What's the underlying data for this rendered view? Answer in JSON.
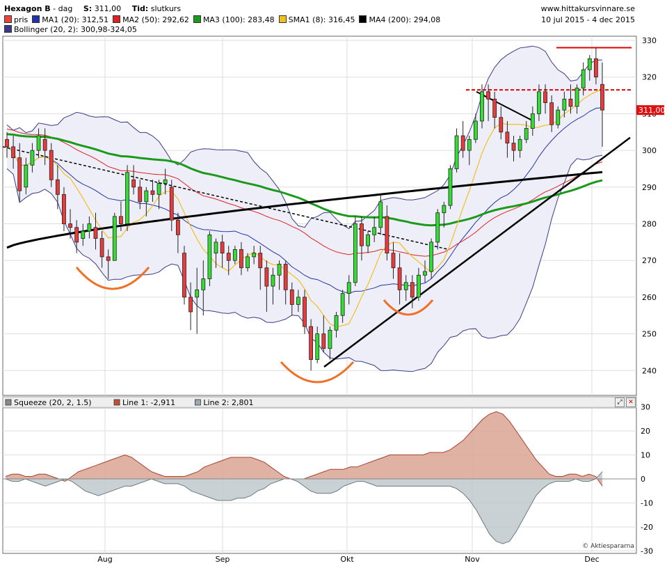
{
  "header": {
    "name": "Hexagon B",
    "interval": "dag",
    "s_label": "S:",
    "s_value": "311,00",
    "tid_label": "Tid:",
    "tid_value": "slutkurs",
    "site": "www.hittakursvinnare.se",
    "date_range": "10 jul 2015 - 4 dec 2015",
    "legend": [
      {
        "label": "pris",
        "color": "#e8453c"
      },
      {
        "label": "MA1 (20): 312,51",
        "color": "#2233aa"
      },
      {
        "label": "MA2 (50): 292,62",
        "color": "#dd2222"
      },
      {
        "label": "MA3 (100): 283,48",
        "color": "#1a9a1a"
      },
      {
        "label": "SMA1 (8): 316,45",
        "color": "#f0c020"
      },
      {
        "label": "MA4 (200): 294,08",
        "color": "#000000"
      },
      {
        "label": "Bollinger (20, 2): 300,98-324,05",
        "color": "#3a3a8a"
      }
    ]
  },
  "chart_data": [
    {
      "type": "candlestick",
      "yticks": [
        "330",
        "320",
        "310",
        "300",
        "290",
        "280",
        "270",
        "260",
        "250",
        "240"
      ],
      "ylim": [
        236,
        333
      ],
      "xlabels": [
        "Aug",
        "Sep",
        "Okt",
        "Nov",
        "Dec"
      ],
      "last_price_label": "311,00",
      "ohlc": [
        [
          303,
          305,
          298,
          301
        ],
        [
          301,
          304,
          295,
          298
        ],
        [
          298,
          302,
          286,
          289
        ],
        [
          290,
          298,
          288,
          296
        ],
        [
          296,
          302,
          294,
          300
        ],
        [
          300,
          306,
          298,
          304
        ],
        [
          303,
          306,
          296,
          300
        ],
        [
          300,
          302,
          290,
          292
        ],
        [
          292,
          296,
          284,
          288
        ],
        [
          288,
          290,
          278,
          280
        ],
        [
          280,
          284,
          276,
          279
        ],
        [
          279,
          281,
          272,
          275
        ],
        [
          276,
          280,
          274,
          278
        ],
        [
          278,
          282,
          276,
          280
        ],
        [
          279,
          283,
          273,
          276
        ],
        [
          276,
          278,
          268,
          271
        ],
        [
          271,
          273,
          265,
          270
        ],
        [
          270,
          283,
          270,
          282
        ],
        [
          282,
          286,
          278,
          280
        ],
        [
          280,
          296,
          278,
          294
        ],
        [
          292,
          296,
          288,
          290
        ],
        [
          290,
          292,
          284,
          286
        ],
        [
          286,
          290,
          282,
          289
        ],
        [
          289,
          292,
          286,
          288
        ],
        [
          288,
          292,
          284,
          291
        ],
        [
          291,
          295,
          288,
          292
        ],
        [
          290,
          292,
          278,
          281
        ],
        [
          281,
          283,
          272,
          277
        ],
        [
          272,
          274,
          258,
          260
        ],
        [
          260,
          264,
          251,
          256
        ],
        [
          260,
          268,
          250,
          262
        ],
        [
          262,
          270,
          255,
          265
        ],
        [
          265,
          278,
          263,
          277
        ],
        [
          272,
          276,
          268,
          275
        ],
        [
          275,
          277,
          268,
          272
        ],
        [
          272,
          274,
          266,
          270
        ],
        [
          270,
          274,
          269,
          273
        ],
        [
          273,
          275,
          266,
          268
        ],
        [
          268,
          272,
          267,
          271
        ],
        [
          271,
          274,
          269,
          272
        ],
        [
          272,
          274,
          262,
          268
        ],
        [
          268,
          270,
          256,
          263
        ],
        [
          263,
          268,
          258,
          266
        ],
        [
          266,
          270,
          262,
          269
        ],
        [
          269,
          270,
          258,
          262
        ],
        [
          262,
          264,
          255,
          258
        ],
        [
          258,
          262,
          256,
          260
        ],
        [
          260,
          262,
          250,
          252
        ],
        [
          252,
          254,
          240,
          243
        ],
        [
          243,
          252,
          242,
          250
        ],
        [
          250,
          255,
          245,
          246
        ],
        [
          246,
          252,
          243,
          251
        ],
        [
          251,
          256,
          249,
          255
        ],
        [
          255,
          262,
          253,
          261
        ],
        [
          261,
          266,
          258,
          264
        ],
        [
          264,
          282,
          263,
          280
        ],
        [
          280,
          282,
          270,
          274
        ],
        [
          274,
          278,
          272,
          277
        ],
        [
          277,
          282,
          275,
          279
        ],
        [
          279,
          288,
          277,
          286
        ],
        [
          282,
          285,
          270,
          272
        ],
        [
          272,
          275,
          265,
          268
        ],
        [
          268,
          272,
          258,
          262
        ],
        [
          262,
          266,
          259,
          264
        ],
        [
          264,
          266,
          257,
          260
        ],
        [
          260,
          268,
          259,
          266
        ],
        [
          266,
          270,
          264,
          267
        ],
        [
          267,
          276,
          265,
          275
        ],
        [
          275,
          284,
          273,
          283
        ],
        [
          283,
          286,
          279,
          285
        ],
        [
          285,
          296,
          284,
          295
        ],
        [
          295,
          306,
          294,
          304
        ],
        [
          304,
          308,
          298,
          300
        ],
        [
          300,
          304,
          296,
          303
        ],
        [
          303,
          310,
          302,
          308
        ],
        [
          308,
          318,
          306,
          316
        ],
        [
          316,
          318,
          308,
          314
        ],
        [
          314,
          316,
          306,
          309
        ],
        [
          309,
          312,
          303,
          305
        ],
        [
          305,
          308,
          298,
          302
        ],
        [
          302,
          304,
          297,
          300
        ],
        [
          300,
          304,
          298,
          303
        ],
        [
          303,
          308,
          302,
          306
        ],
        [
          306,
          312,
          304,
          310
        ],
        [
          310,
          318,
          308,
          316
        ],
        [
          316,
          318,
          310,
          313
        ],
        [
          313,
          315,
          305,
          307
        ],
        [
          307,
          312,
          306,
          311
        ],
        [
          311,
          316,
          309,
          314
        ],
        [
          314,
          318,
          310,
          312
        ],
        [
          312,
          318,
          310,
          317
        ],
        [
          317,
          324,
          315,
          322
        ],
        [
          322,
          326,
          319,
          325
        ],
        [
          325,
          328,
          318,
          320
        ],
        [
          318,
          324,
          301,
          311
        ]
      ],
      "series_endpoints": [
        {
          "name": "MA1 (20)",
          "value": "312,51"
        },
        {
          "name": "MA2 (50)",
          "value": "292,62"
        },
        {
          "name": "MA3 (100)",
          "value": "283,48"
        },
        {
          "name": "SMA1 (8)",
          "value": "316,45"
        },
        {
          "name": "MA4 (200)",
          "value": "294,08"
        }
      ]
    },
    {
      "type": "area",
      "legend": [
        {
          "label": "Squeeze (20, 2, 1.5)",
          "color": "#888888"
        },
        {
          "label": "Line 1: -2,911",
          "color": "#c0503a"
        },
        {
          "label": "Line 2: 2,801",
          "color": "#9aaab0"
        }
      ],
      "yticks": [
        "30",
        "20",
        "10",
        "0",
        "-10",
        "-20",
        "-30"
      ],
      "ylim": [
        -30,
        30
      ],
      "line1": [
        1,
        2,
        2,
        1,
        1,
        2,
        2,
        1,
        0,
        -1,
        1,
        3,
        4,
        5,
        6,
        7,
        8,
        9,
        10,
        9,
        7,
        5,
        3,
        2,
        1,
        1,
        1,
        1,
        2,
        3,
        5,
        6,
        7,
        8,
        9,
        9,
        9,
        9,
        8,
        7,
        5,
        3,
        1,
        0,
        0,
        0,
        1,
        2,
        3,
        4,
        4,
        4,
        5,
        5,
        6,
        7,
        8,
        9,
        10,
        10,
        10,
        10,
        10,
        10,
        11,
        11,
        11,
        12,
        14,
        16,
        19,
        22,
        25,
        27,
        28,
        27,
        24,
        20,
        16,
        12,
        8,
        5,
        2,
        1,
        1,
        2,
        2,
        1,
        2,
        1,
        -3
      ],
      "line2": [
        0,
        -1,
        -1,
        0,
        -1,
        -2,
        -3,
        -2,
        -1,
        0,
        -1,
        -3,
        -5,
        -6,
        -7,
        -6,
        -5,
        -4,
        -3,
        -3,
        -2,
        -1,
        0,
        -1,
        -2,
        -2,
        -2,
        -3,
        -5,
        -6,
        -7,
        -8,
        -9,
        -9,
        -9,
        -8,
        -8,
        -7,
        -5,
        -4,
        -2,
        -1,
        0,
        0,
        -1,
        -3,
        -5,
        -6,
        -6,
        -6,
        -5,
        -3,
        -2,
        -1,
        -1,
        -2,
        -3,
        -3,
        -3,
        -3,
        -3,
        -3,
        -3,
        -3,
        -3,
        -3,
        -3,
        -3,
        -4,
        -6,
        -9,
        -13,
        -18,
        -23,
        -26,
        -27,
        -26,
        -22,
        -17,
        -12,
        -7,
        -4,
        -2,
        -1,
        -1,
        -1,
        0,
        -1,
        -1,
        0,
        3
      ]
    }
  ],
  "footer": {
    "copyright": "© Aktiespararna"
  }
}
